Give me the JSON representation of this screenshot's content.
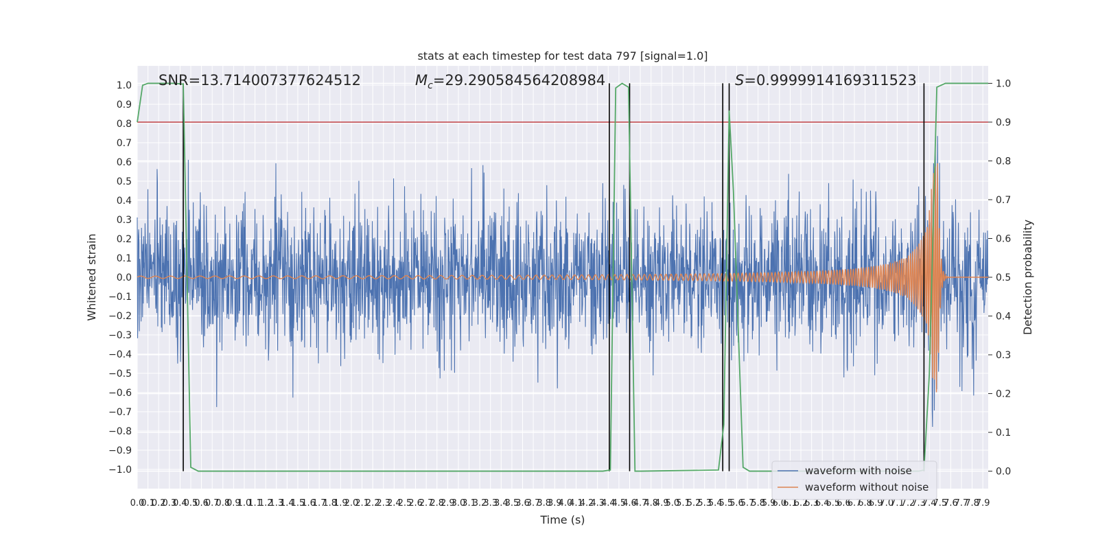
{
  "chart_data": {
    "type": "line",
    "title": "stats at each timestep for test data 797 [signal=1.0]",
    "xlabel": "Time (s)",
    "ylabel": "Whitened strain",
    "ylabel_right": "Detection probability",
    "xlim": [
      0.0,
      7.95
    ],
    "ylim": [
      -1.1,
      1.1
    ],
    "ylim_right": [
      -0.045,
      1.045
    ],
    "x_tick_step": 0.1,
    "x_tick_max": 7.9,
    "y_ticks": [
      -1.0,
      -0.9,
      -0.8,
      -0.7,
      -0.6,
      -0.5,
      -0.4,
      -0.3,
      -0.2,
      -0.1,
      0.0,
      0.1,
      0.2,
      0.3,
      0.4,
      0.5,
      0.6,
      0.7,
      0.8,
      0.9,
      1.0
    ],
    "y_ticks_right": [
      0.0,
      0.1,
      0.2,
      0.3,
      0.4,
      0.5,
      0.6,
      0.7,
      0.8,
      0.9,
      1.0
    ],
    "annotations": {
      "snr": "SNR=13.714007377624512",
      "mc_symbol": "M",
      "mc_sub": "c",
      "mc_value": "=29.290584564208984",
      "s_symbol": "S",
      "s_value": "=0.9999914169311523"
    },
    "series": [
      {
        "name": "waveform with noise",
        "color": "#4c72b0",
        "noise_sigma": 0.19,
        "max_abs": 1.0
      },
      {
        "name": "waveform without noise",
        "color": "#dd8452",
        "start_amplitude": 0.006,
        "peak_amplitude": 0.6,
        "merger_time": 7.48,
        "ringdown_end": 7.58,
        "start_freq": 12,
        "end_freq": 90
      }
    ],
    "detection_probability": {
      "name": "detection probability",
      "color": "#55a868",
      "x": [
        0.0,
        0.05,
        0.1,
        0.35,
        0.43,
        0.5,
        0.57,
        0.65,
        1.1,
        4.35,
        4.42,
        4.47,
        4.53,
        4.59,
        4.65,
        4.71,
        5.43,
        5.48,
        5.53,
        5.57,
        5.66,
        5.72,
        7.3,
        7.35,
        7.4,
        7.47,
        7.55,
        7.65,
        7.95
      ],
      "y": [
        0.9,
        0.995,
        1.0,
        1.0,
        0.998,
        0.01,
        0.0,
        0.0,
        0.0,
        0.0,
        0.003,
        0.988,
        1.0,
        0.99,
        0.0,
        0.0,
        0.003,
        0.12,
        0.93,
        0.72,
        0.01,
        0.0,
        0.0,
        0.003,
        0.25,
        0.99,
        1.0,
        1.0,
        1.0
      ]
    },
    "threshold": {
      "value": 0.9,
      "color": "#c44e52"
    },
    "vertical_lines": {
      "color": "#000000",
      "x": [
        0.43,
        4.41,
        4.6,
        5.47,
        5.53,
        7.35
      ]
    }
  }
}
